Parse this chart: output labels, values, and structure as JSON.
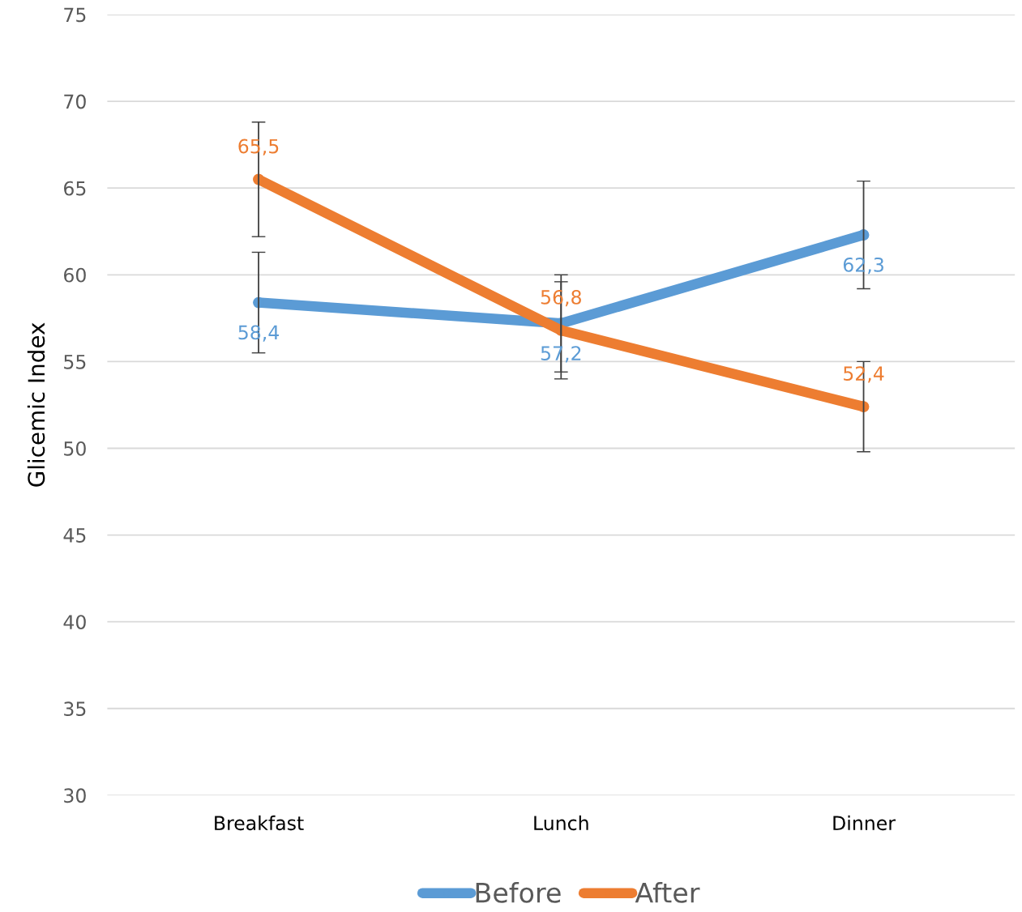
{
  "chart_data": {
    "type": "line",
    "ylabel": "Glicemic Index",
    "categories": [
      "Breakfast",
      "Lunch",
      "Dinner"
    ],
    "series": [
      {
        "name": "Before",
        "color": "#5b9bd5",
        "values": [
          58.4,
          57.2,
          62.3
        ],
        "errors": [
          2.9,
          2.8,
          3.1
        ],
        "value_labels": [
          "58,4",
          "57,2",
          "62,3"
        ]
      },
      {
        "name": "After",
        "color": "#ed7d31",
        "values": [
          65.5,
          56.8,
          52.4
        ],
        "errors": [
          3.3,
          2.8,
          2.6
        ],
        "value_labels": [
          "65,5",
          "56,8",
          "52,4"
        ]
      }
    ],
    "ylim": [
      30,
      75
    ],
    "yticks": [
      30,
      35,
      40,
      45,
      50,
      55,
      60,
      65,
      70,
      75
    ],
    "grid": "y",
    "legend": "bottom",
    "marker": "circle",
    "line_style": "solid"
  }
}
